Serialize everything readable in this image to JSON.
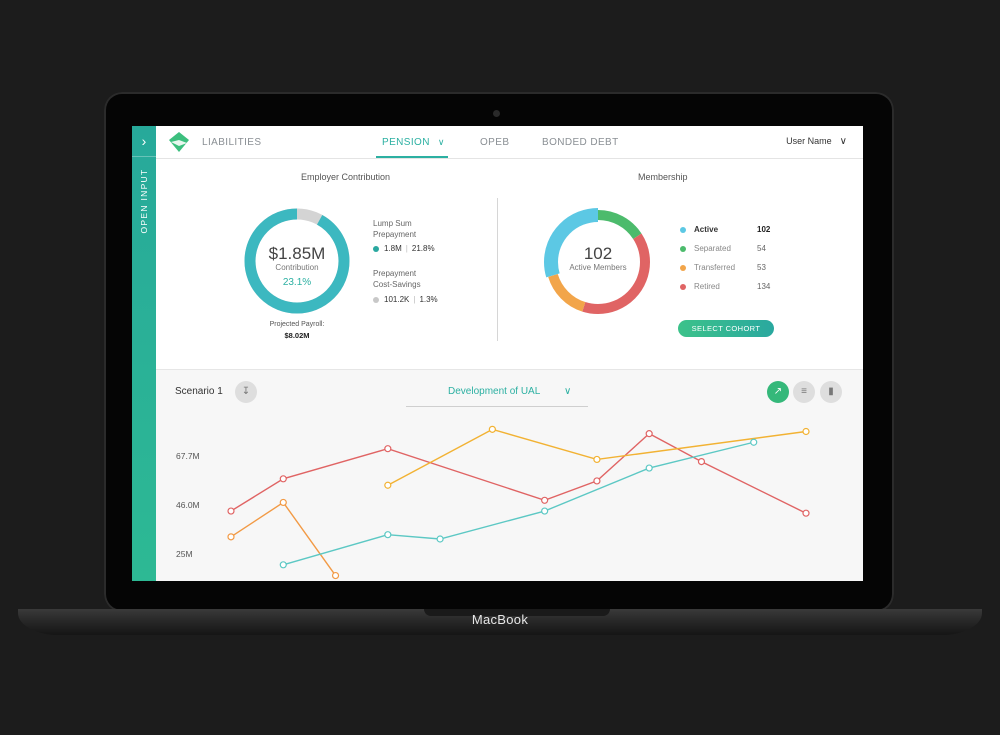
{
  "device": {
    "brand": "MacBook"
  },
  "sidebar": {
    "label": "OPEN INPUT"
  },
  "nav": {
    "items": [
      {
        "label": "LIABILITIES",
        "active": false
      },
      {
        "label": "PENSION",
        "active": true
      },
      {
        "label": "OPEB",
        "active": false
      },
      {
        "label": "BONDED DEBT",
        "active": false
      }
    ],
    "user": "User Name"
  },
  "employer": {
    "title": "Employer Contribution",
    "amount": "$1.85M",
    "amount_label": "Contribution",
    "percent": "23.1%",
    "payroll_label": "Projected Payroll:",
    "payroll_value": "$8.02M",
    "lump_title": "Lump Sum\nPrepayment",
    "lump_value": "1.8M",
    "lump_pct": "21.8%",
    "prepay_title": "Prepayment\nCost-Savings",
    "prepay_value": "101.2K",
    "prepay_pct": "1.3%",
    "share": 0.92
  },
  "membership": {
    "title": "Membership",
    "count": "102",
    "count_label": "Active Members",
    "rows": [
      {
        "label": "Active",
        "value": "102",
        "color": "#5cc8e4"
      },
      {
        "label": "Separated",
        "value": "54",
        "color": "#4cbb6c"
      },
      {
        "label": "Transferred",
        "value": "53",
        "color": "#f2a54a"
      },
      {
        "label": "Retired",
        "value": "134",
        "color": "#e06464"
      }
    ],
    "button": "SELECT COHORT"
  },
  "scenario": {
    "title": "Scenario 1",
    "dropdown": "Development of UAL"
  },
  "colors": {
    "accent": "#2cb0a2"
  },
  "chart_data": {
    "type": "line",
    "y_ticks": [
      "67.7M",
      "46.0M",
      "25M"
    ],
    "x": [
      1,
      2,
      3,
      4,
      5,
      6,
      7,
      8,
      9,
      10,
      11,
      12
    ],
    "series": [
      {
        "color": "#e06464",
        "values": [
          33,
          48,
          null,
          62,
          null,
          null,
          38,
          47,
          69,
          56,
          null,
          32
        ]
      },
      {
        "color": "#f2b233",
        "values": [
          null,
          null,
          null,
          45,
          null,
          71,
          null,
          57,
          null,
          null,
          null,
          70
        ]
      },
      {
        "color": "#f29a45",
        "values": [
          21,
          37,
          3,
          null,
          null,
          null,
          null,
          null,
          null,
          null,
          null,
          null
        ]
      },
      {
        "color": "#5cc8c4",
        "values": [
          null,
          8,
          null,
          22,
          20,
          null,
          33,
          null,
          53,
          null,
          65,
          null
        ]
      }
    ]
  }
}
